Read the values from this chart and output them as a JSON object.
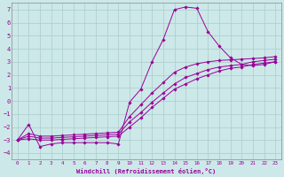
{
  "xlabel": "Windchill (Refroidissement éolien,°C)",
  "background_color": "#cce8e8",
  "grid_color": "#aacccc",
  "line_color": "#990099",
  "xlim": [
    -0.5,
    23.5
  ],
  "ylim": [
    -4.5,
    7.5
  ],
  "xticks": [
    0,
    1,
    2,
    3,
    4,
    5,
    6,
    7,
    8,
    9,
    10,
    11,
    12,
    13,
    14,
    15,
    16,
    17,
    18,
    19,
    20,
    21,
    22,
    23
  ],
  "yticks": [
    -4,
    -3,
    -2,
    -1,
    0,
    1,
    2,
    3,
    4,
    5,
    6,
    7
  ],
  "series": [
    {
      "x": [
        0,
        1,
        2,
        3,
        4,
        5,
        6,
        7,
        8,
        9,
        10,
        11,
        12,
        13,
        14,
        15,
        16,
        17,
        18,
        19,
        20,
        21,
        22,
        23
      ],
      "y": [
        -3.0,
        -1.8,
        -3.5,
        -3.3,
        -3.2,
        -3.2,
        -3.2,
        -3.2,
        -3.2,
        -3.3,
        -0.1,
        0.9,
        3.0,
        4.7,
        7.0,
        7.2,
        7.1,
        5.3,
        4.2,
        3.3,
        2.8,
        2.7,
        2.8,
        3.0
      ]
    },
    {
      "x": [
        0,
        1,
        2,
        3,
        4,
        5,
        6,
        7,
        8,
        9,
        10,
        11,
        12,
        13,
        14,
        15,
        16,
        17,
        18,
        19,
        20,
        21,
        22,
        23
      ],
      "y": [
        -3.0,
        -2.9,
        -3.0,
        -3.0,
        -2.95,
        -2.9,
        -2.85,
        -2.8,
        -2.75,
        -2.7,
        -2.0,
        -1.3,
        -0.5,
        0.2,
        0.9,
        1.3,
        1.7,
        2.0,
        2.3,
        2.5,
        2.6,
        2.8,
        2.9,
        3.0
      ]
    },
    {
      "x": [
        0,
        1,
        2,
        3,
        4,
        5,
        6,
        7,
        8,
        9,
        10,
        11,
        12,
        13,
        14,
        15,
        16,
        17,
        18,
        19,
        20,
        21,
        22,
        23
      ],
      "y": [
        -3.0,
        -2.7,
        -2.85,
        -2.85,
        -2.8,
        -2.75,
        -2.7,
        -2.65,
        -2.6,
        -2.55,
        -1.6,
        -0.9,
        -0.1,
        0.6,
        1.3,
        1.8,
        2.1,
        2.4,
        2.6,
        2.7,
        2.8,
        3.0,
        3.1,
        3.2
      ]
    },
    {
      "x": [
        0,
        1,
        2,
        3,
        4,
        5,
        6,
        7,
        8,
        9,
        10,
        11,
        12,
        13,
        14,
        15,
        16,
        17,
        18,
        19,
        20,
        21,
        22,
        23
      ],
      "y": [
        -3.0,
        -2.5,
        -2.7,
        -2.7,
        -2.65,
        -2.6,
        -2.55,
        -2.5,
        -2.45,
        -2.4,
        -1.2,
        -0.3,
        0.6,
        1.4,
        2.2,
        2.6,
        2.85,
        3.0,
        3.1,
        3.15,
        3.2,
        3.25,
        3.3,
        3.4
      ]
    }
  ]
}
